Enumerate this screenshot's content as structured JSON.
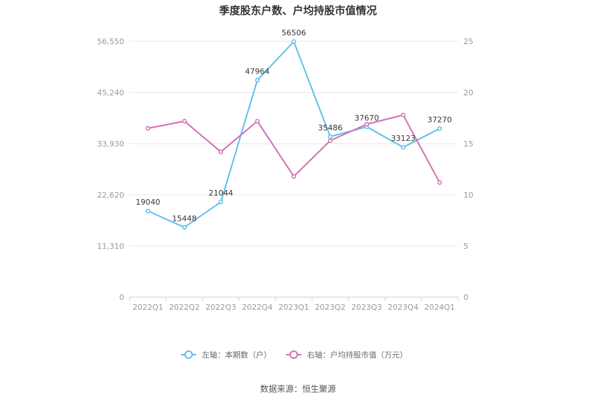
{
  "chart_data": {
    "type": "line",
    "title": "季度股东户数、户均持股市值情况",
    "categories": [
      "2022Q1",
      "2022Q2",
      "2022Q3",
      "2022Q4",
      "2023Q1",
      "2023Q2",
      "2023Q3",
      "2023Q4",
      "2024Q1"
    ],
    "y_left": {
      "ticks": [
        "0",
        "11,310",
        "22,620",
        "33,930",
        "45,240",
        "56,550"
      ],
      "min": 0,
      "max": 56550
    },
    "y_right": {
      "ticks": [
        "0",
        "5",
        "10",
        "15",
        "20",
        "25"
      ],
      "min": 0,
      "max": 25
    },
    "series": [
      {
        "name": "左轴：本期数（户）",
        "axis": "left",
        "color": "#5bc0eb",
        "values": [
          19040,
          15448,
          21044,
          47964,
          56506,
          35486,
          37670,
          33123,
          37270
        ],
        "labels": [
          "19040",
          "15448",
          "21044",
          "47964",
          "56506",
          "35486",
          "37670",
          "33123",
          "37270"
        ]
      },
      {
        "name": "右轴：户均持股市值（万元）",
        "axis": "right",
        "color": "#d46db3",
        "values": [
          16.5,
          17.2,
          14.2,
          17.2,
          11.8,
          15.3,
          16.9,
          17.8,
          11.2
        ]
      }
    ],
    "legend_position": "bottom",
    "grid": true
  },
  "source": "数据来源：恒生聚源"
}
